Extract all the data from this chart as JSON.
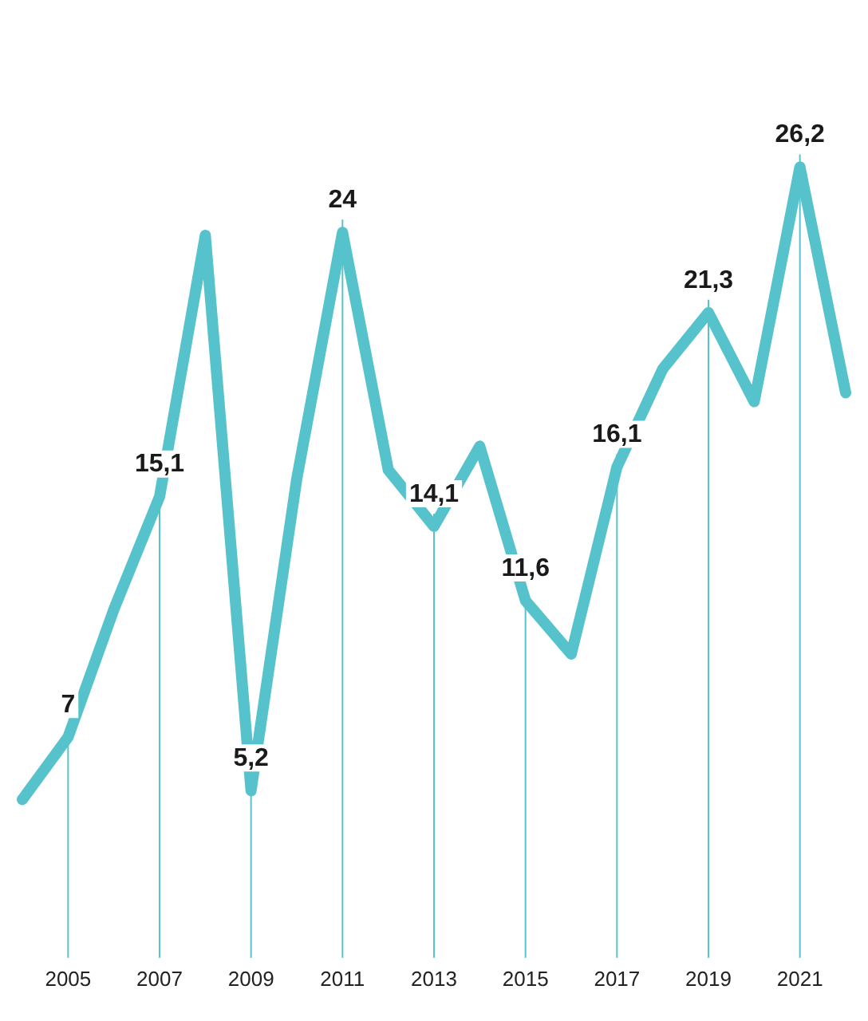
{
  "chart_data": {
    "type": "line",
    "categories": [
      null,
      "2005",
      null,
      "2007",
      null,
      "2009",
      null,
      "2011",
      null,
      "2013",
      null,
      "2015",
      null,
      "2017",
      null,
      "2019",
      null,
      "2021",
      null
    ],
    "values": [
      4.9,
      7,
      11.3,
      15.1,
      23.9,
      5.2,
      15.7,
      24,
      16.0,
      14.1,
      16.8,
      11.6,
      9.8,
      16.1,
      19.4,
      21.3,
      18.3,
      26.2,
      18.6
    ],
    "value_labels": [
      null,
      "7",
      null,
      "15,1",
      null,
      "5,2",
      null,
      "24",
      null,
      "14,1",
      null,
      "11,6",
      null,
      "16,1",
      null,
      "21,3",
      null,
      "26,2",
      null
    ],
    "color": "#56c3cc",
    "marker": "none",
    "grid": "x"
  }
}
